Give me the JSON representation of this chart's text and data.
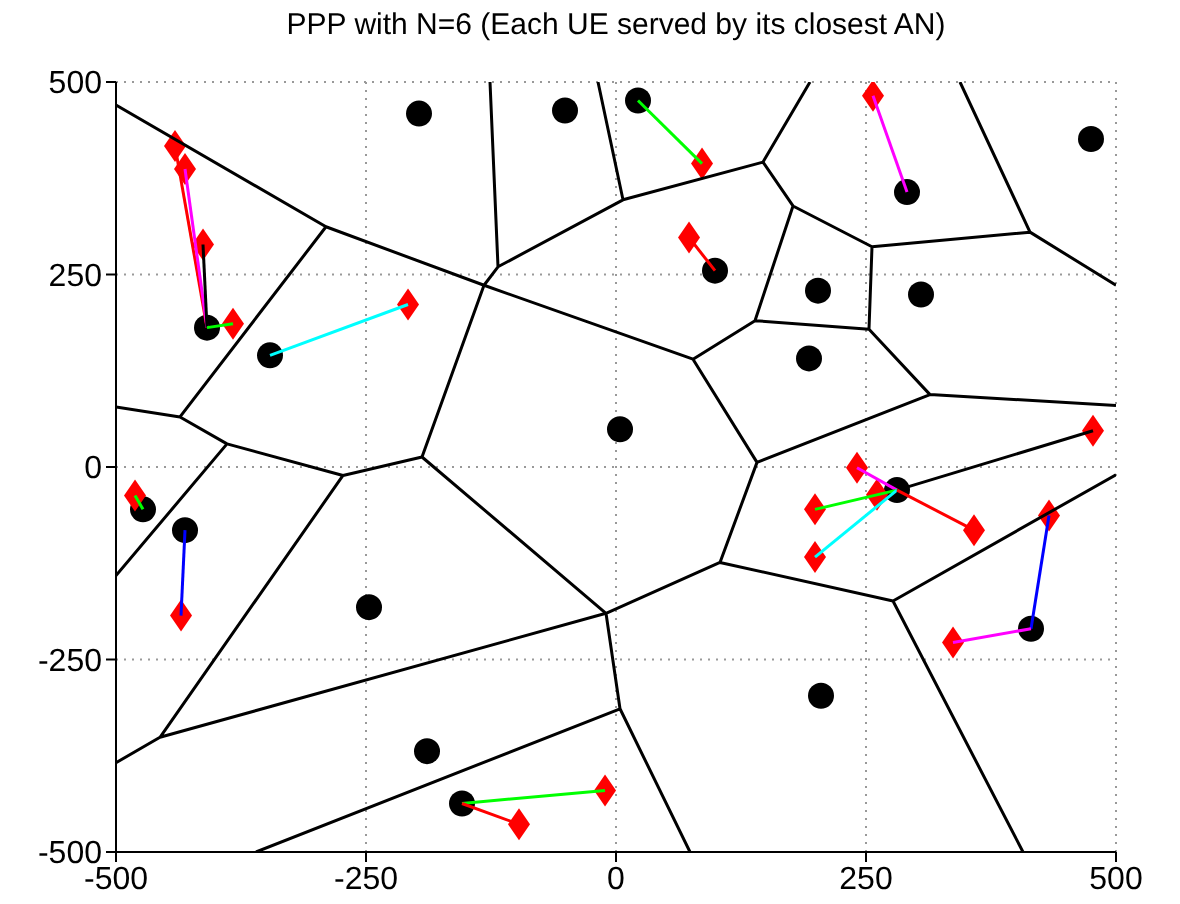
{
  "chart_data": {
    "type": "scatter",
    "title": "PPP with N=6 (Each UE served by its closest AN)",
    "xlim": [
      -500,
      500
    ],
    "ylim": [
      -500,
      500
    ],
    "xticks": [
      -500,
      -250,
      0,
      250,
      500
    ],
    "yticks": [
      -500,
      -250,
      0,
      250,
      500
    ],
    "grid": true,
    "series": [
      {
        "type": "line",
        "color": "#000000",
        "x": [
          -500,
          -290,
          -132,
          -118,
          -126,
          null,
          -118,
          7,
          -18,
          null,
          7,
          147,
          194,
          null,
          147,
          177,
          256,
          414,
          344,
          null,
          414,
          500,
          null,
          256,
          253,
          139,
          177,
          null,
          253,
          314,
          500,
          null,
          314,
          141,
          77,
          139,
          null,
          77,
          -132,
          -194,
          -10,
          104,
          141,
          null,
          104,
          277,
          500,
          null,
          277,
          407,
          null,
          -10,
          4,
          74,
          null,
          4,
          -360,
          null,
          -10,
          -456,
          -500,
          null,
          -456,
          -273,
          -194,
          null,
          -273,
          -389,
          -436,
          -290,
          null,
          -389,
          -500,
          null,
          -436,
          -500
        ],
        "values": [
          470,
          312,
          236,
          260,
          500,
          null,
          260,
          347,
          500,
          null,
          347,
          396,
          500,
          null,
          396,
          339,
          286,
          305,
          500,
          null,
          305,
          236,
          null,
          286,
          179,
          190,
          339,
          null,
          179,
          94,
          80,
          null,
          94,
          6,
          140,
          190,
          null,
          140,
          236,
          13,
          -190,
          -124,
          6,
          null,
          -124,
          -174,
          -10,
          null,
          -174,
          -500,
          null,
          -190,
          -314,
          -500,
          null,
          -314,
          -500,
          null,
          -190,
          -351,
          -384,
          null,
          -351,
          -11,
          13,
          null,
          -11,
          30,
          65,
          312,
          null,
          30,
          -141,
          null,
          65,
          78
        ]
      },
      {
        "color": "#000000",
        "marker": "circle",
        "x": [
          -409,
          -346,
          -197,
          -51,
          22,
          291,
          475,
          99,
          202,
          305,
          193,
          4,
          281,
          415,
          205,
          -473,
          -431,
          -247,
          -189,
          -154
        ],
        "values": [
          181,
          145,
          459,
          463,
          476,
          357,
          426,
          255,
          229,
          224,
          141,
          49,
          -30,
          -210,
          -297,
          -55,
          -82,
          -182,
          -369,
          -437
        ]
      },
      {
        "color": "#ff0000",
        "marker": "diamond",
        "x": [
          -441,
          -431,
          -413,
          -383,
          -208,
          86,
          257,
          73,
          477,
          241,
          261,
          199,
          199,
          358,
          433,
          337,
          -481,
          -435,
          -11,
          -97
        ],
        "values": [
          417,
          387,
          289,
          186,
          211,
          394,
          482,
          298,
          47,
          -1,
          -36,
          -55,
          -117,
          -82,
          -63,
          -228,
          -37,
          -193,
          -420,
          -464
        ]
      },
      {
        "type": "line",
        "color": "#ff0000",
        "x": [
          -409,
          -441
        ],
        "values": [
          181,
          417
        ]
      },
      {
        "type": "line",
        "color": "#ff00ff",
        "x": [
          -409,
          -431
        ],
        "values": [
          181,
          387
        ]
      },
      {
        "type": "line",
        "color": "#000000",
        "x": [
          -409,
          -413
        ],
        "values": [
          181,
          289
        ]
      },
      {
        "type": "line",
        "color": "#00ff00",
        "x": [
          -409,
          -383
        ],
        "values": [
          181,
          186
        ]
      },
      {
        "type": "line",
        "color": "#00ffff",
        "x": [
          -346,
          -208
        ],
        "values": [
          145,
          211
        ]
      },
      {
        "type": "line",
        "color": "#00ff00",
        "x": [
          22,
          86
        ],
        "values": [
          476,
          394
        ]
      },
      {
        "type": "line",
        "color": "#ff00ff",
        "x": [
          291,
          257
        ],
        "values": [
          357,
          482
        ]
      },
      {
        "type": "line",
        "color": "#ff0000",
        "x": [
          99,
          73
        ],
        "values": [
          255,
          298
        ]
      },
      {
        "type": "line",
        "color": "#000000",
        "x": [
          281,
          477
        ],
        "values": [
          -30,
          47
        ]
      },
      {
        "type": "line",
        "color": "#ff00ff",
        "x": [
          281,
          241
        ],
        "values": [
          -30,
          -1
        ]
      },
      {
        "type": "line",
        "color": "#00ff00",
        "x": [
          281,
          199
        ],
        "values": [
          -30,
          -55
        ]
      },
      {
        "type": "line",
        "color": "#00ffff",
        "x": [
          281,
          199
        ],
        "values": [
          -30,
          -117
        ]
      },
      {
        "type": "line",
        "color": "#ff0000",
        "x": [
          281,
          358
        ],
        "values": [
          -30,
          -82
        ]
      },
      {
        "type": "line",
        "color": "#0000ff",
        "x": [
          415,
          433
        ],
        "values": [
          -210,
          -63
        ]
      },
      {
        "type": "line",
        "color": "#ff00ff",
        "x": [
          415,
          337
        ],
        "values": [
          -210,
          -228
        ]
      },
      {
        "type": "line",
        "color": "#0000ff",
        "x": [
          -431,
          -435
        ],
        "values": [
          -82,
          -193
        ]
      },
      {
        "type": "line",
        "color": "#00ff00",
        "x": [
          -154,
          -11
        ],
        "values": [
          -437,
          -420
        ]
      },
      {
        "type": "line",
        "color": "#ff0000",
        "x": [
          -154,
          -97
        ],
        "values": [
          -437,
          -464
        ]
      },
      {
        "type": "line",
        "color": "#00ff00",
        "x": [
          -473,
          -481
        ],
        "values": [
          -55,
          -37
        ]
      }
    ]
  }
}
